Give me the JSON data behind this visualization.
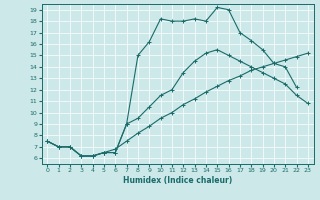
{
  "title": "",
  "xlabel": "Humidex (Indice chaleur)",
  "bg_color": "#cce8e8",
  "grid_color": "#ffffff",
  "line_color": "#1a6b6b",
  "xlim": [
    -0.5,
    23.5
  ],
  "ylim": [
    5.5,
    19.5
  ],
  "yticks": [
    6,
    7,
    8,
    9,
    10,
    11,
    12,
    13,
    14,
    15,
    16,
    17,
    18,
    19
  ],
  "xticks": [
    0,
    1,
    2,
    3,
    4,
    5,
    6,
    7,
    8,
    9,
    10,
    11,
    12,
    13,
    14,
    15,
    16,
    17,
    18,
    19,
    20,
    21,
    22,
    23
  ],
  "line1_x": [
    0,
    1,
    2,
    3,
    4,
    5,
    6,
    7,
    8,
    9,
    10,
    11,
    12,
    13,
    14,
    15,
    16,
    17,
    18,
    19,
    20,
    21,
    22
  ],
  "line1_y": [
    7.5,
    7.0,
    7.0,
    6.2,
    6.2,
    6.5,
    6.5,
    9.0,
    15.0,
    16.2,
    18.2,
    18.0,
    18.0,
    18.2,
    18.0,
    19.2,
    19.0,
    17.0,
    16.3,
    15.5,
    14.3,
    14.0,
    12.2
  ],
  "line2_x": [
    0,
    1,
    2,
    3,
    4,
    5,
    6,
    7,
    8,
    9,
    10,
    11,
    12,
    13,
    14,
    15,
    16,
    17,
    18,
    19,
    20,
    21,
    22,
    23
  ],
  "line2_y": [
    7.5,
    7.0,
    7.0,
    6.2,
    6.2,
    6.5,
    6.5,
    9.0,
    9.5,
    10.5,
    11.5,
    12.0,
    13.5,
    14.5,
    15.2,
    15.5,
    15.0,
    14.5,
    14.0,
    13.5,
    13.0,
    12.5,
    11.5,
    10.8
  ],
  "line3_x": [
    0,
    1,
    2,
    3,
    4,
    5,
    6,
    7,
    8,
    9,
    10,
    11,
    12,
    13,
    14,
    15,
    16,
    17,
    18,
    19,
    20,
    21,
    22,
    23
  ],
  "line3_y": [
    7.5,
    7.0,
    7.0,
    6.2,
    6.2,
    6.5,
    6.8,
    7.5,
    8.2,
    8.8,
    9.5,
    10.0,
    10.7,
    11.2,
    11.8,
    12.3,
    12.8,
    13.2,
    13.7,
    14.0,
    14.3,
    14.6,
    14.9,
    15.2
  ]
}
